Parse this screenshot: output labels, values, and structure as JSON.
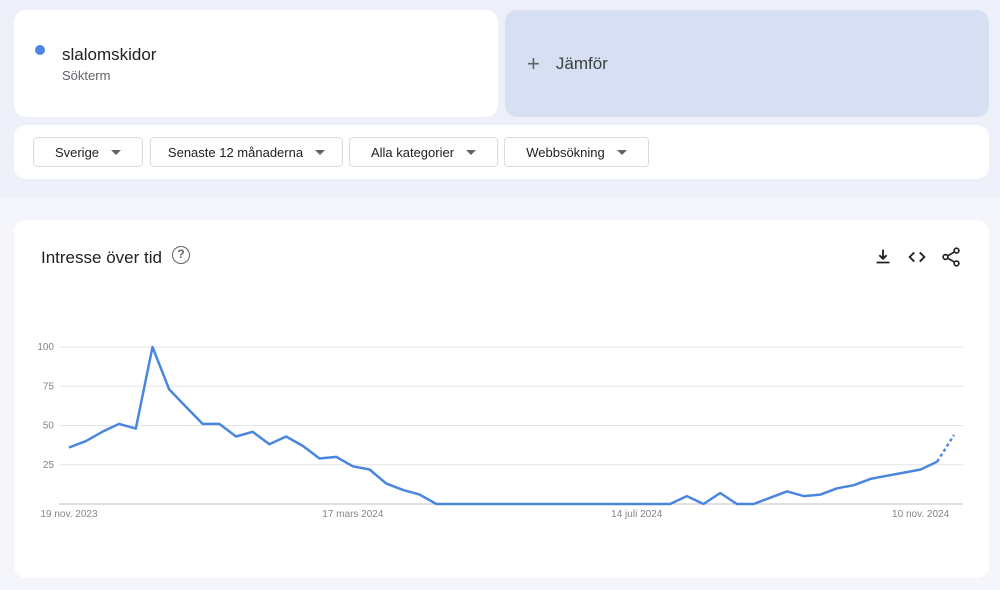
{
  "search_term": {
    "name": "slalomskidor",
    "type": "Sökterm",
    "color": "#4a86e0"
  },
  "compare": {
    "label": "Jämför",
    "icon": "plus-icon"
  },
  "filters": [
    {
      "label": "Sverige",
      "icon": "caret-down-icon"
    },
    {
      "label": "Senaste 12 månaderna",
      "icon": "caret-down-icon"
    },
    {
      "label": "Alla kategorier",
      "icon": "caret-down-icon"
    },
    {
      "label": "Webbsökning",
      "icon": "caret-down-icon"
    }
  ],
  "chart_card": {
    "title": "Intresse över tid",
    "help_icon": "help-circle-icon",
    "tools": [
      "download-icon",
      "embed-code-icon",
      "share-icon"
    ]
  },
  "chart_data": {
    "type": "line",
    "title": "",
    "xlabel": "",
    "ylabel": "",
    "ylim": [
      0,
      100
    ],
    "yticks": [
      "100",
      "75",
      "50",
      "25"
    ],
    "x_tick_labels": [
      "19 nov. 2023",
      "17 mars 2024",
      "14 juli 2024",
      "10 nov. 2024"
    ],
    "x_tick_indices": [
      0,
      17,
      34,
      51
    ],
    "grid": true,
    "series": [
      {
        "color": "#4a86e0",
        "values": [
          36,
          40,
          46,
          51,
          48,
          100,
          73,
          62,
          51,
          51,
          43,
          46,
          38,
          43,
          37,
          29,
          30,
          24,
          22,
          13,
          9,
          6,
          0,
          0,
          0,
          0,
          0,
          0,
          0,
          0,
          0,
          0,
          0,
          0,
          0,
          0,
          0,
          5,
          0,
          7,
          0,
          0,
          4,
          8,
          5,
          6,
          10,
          12,
          16,
          18,
          20,
          22,
          27,
          44
        ],
        "partial_last_point": true
      }
    ]
  }
}
